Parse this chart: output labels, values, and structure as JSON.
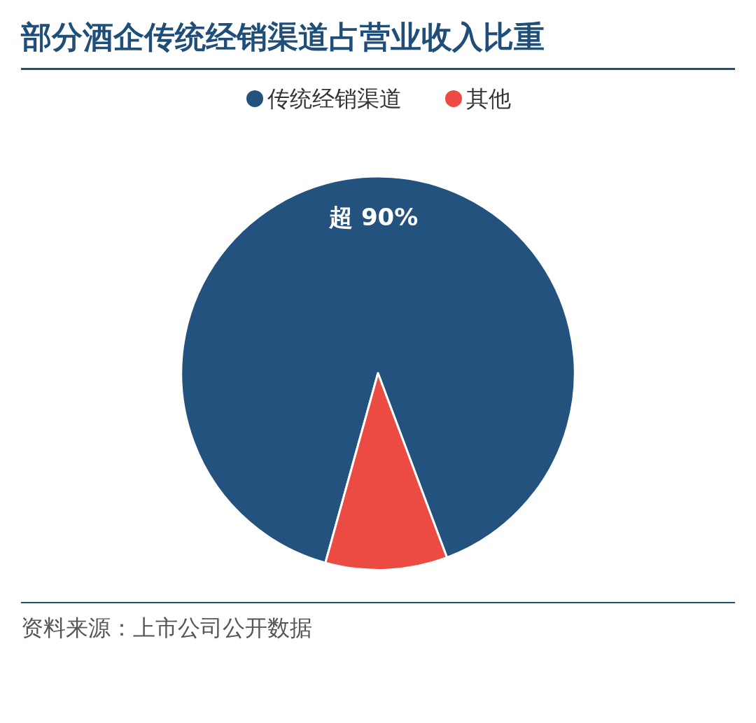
{
  "chart_data": {
    "type": "pie",
    "title": "部分酒企传统经销渠道占营业收入比重",
    "categories": [
      "传统经销渠道",
      "其他"
    ],
    "values": [
      90,
      10
    ],
    "colors": [
      "#23527f",
      "#ec4b43"
    ],
    "value_labels": [
      "超 90%",
      null
    ],
    "legend": "top",
    "annotations": [
      "资料来源：上市公司公开数据"
    ]
  }
}
